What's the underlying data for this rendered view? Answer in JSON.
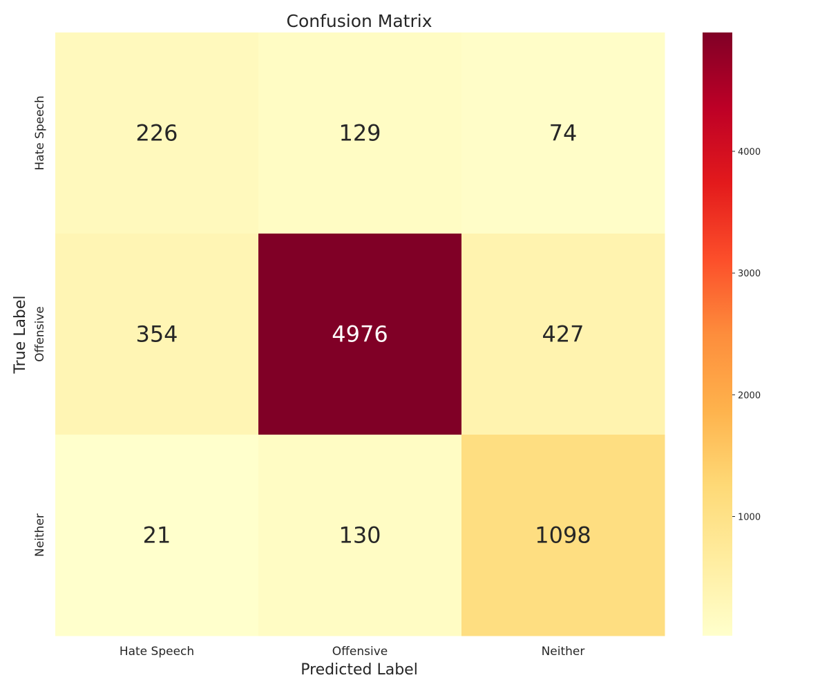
{
  "chart_data": {
    "type": "heatmap",
    "title": "Confusion Matrix",
    "xlabel": "Predicted Label",
    "ylabel": "True Label",
    "x_categories": [
      "Hate Speech",
      "Offensive",
      "Neither"
    ],
    "y_categories": [
      "Hate Speech",
      "Offensive",
      "Neither"
    ],
    "values": [
      [
        226,
        129,
        74
      ],
      [
        354,
        4976,
        427
      ],
      [
        21,
        130,
        1098
      ]
    ],
    "colormap": "YlOrRd",
    "vmin": 21,
    "vmax": 4976,
    "colorbar_ticks": [
      1000,
      2000,
      3000,
      4000
    ],
    "colorbar_tick_labels": [
      "1000",
      "2000",
      "3000",
      "4000"
    ],
    "annotation_light_color": "#ffffff",
    "annotation_dark_color": "#262626"
  }
}
